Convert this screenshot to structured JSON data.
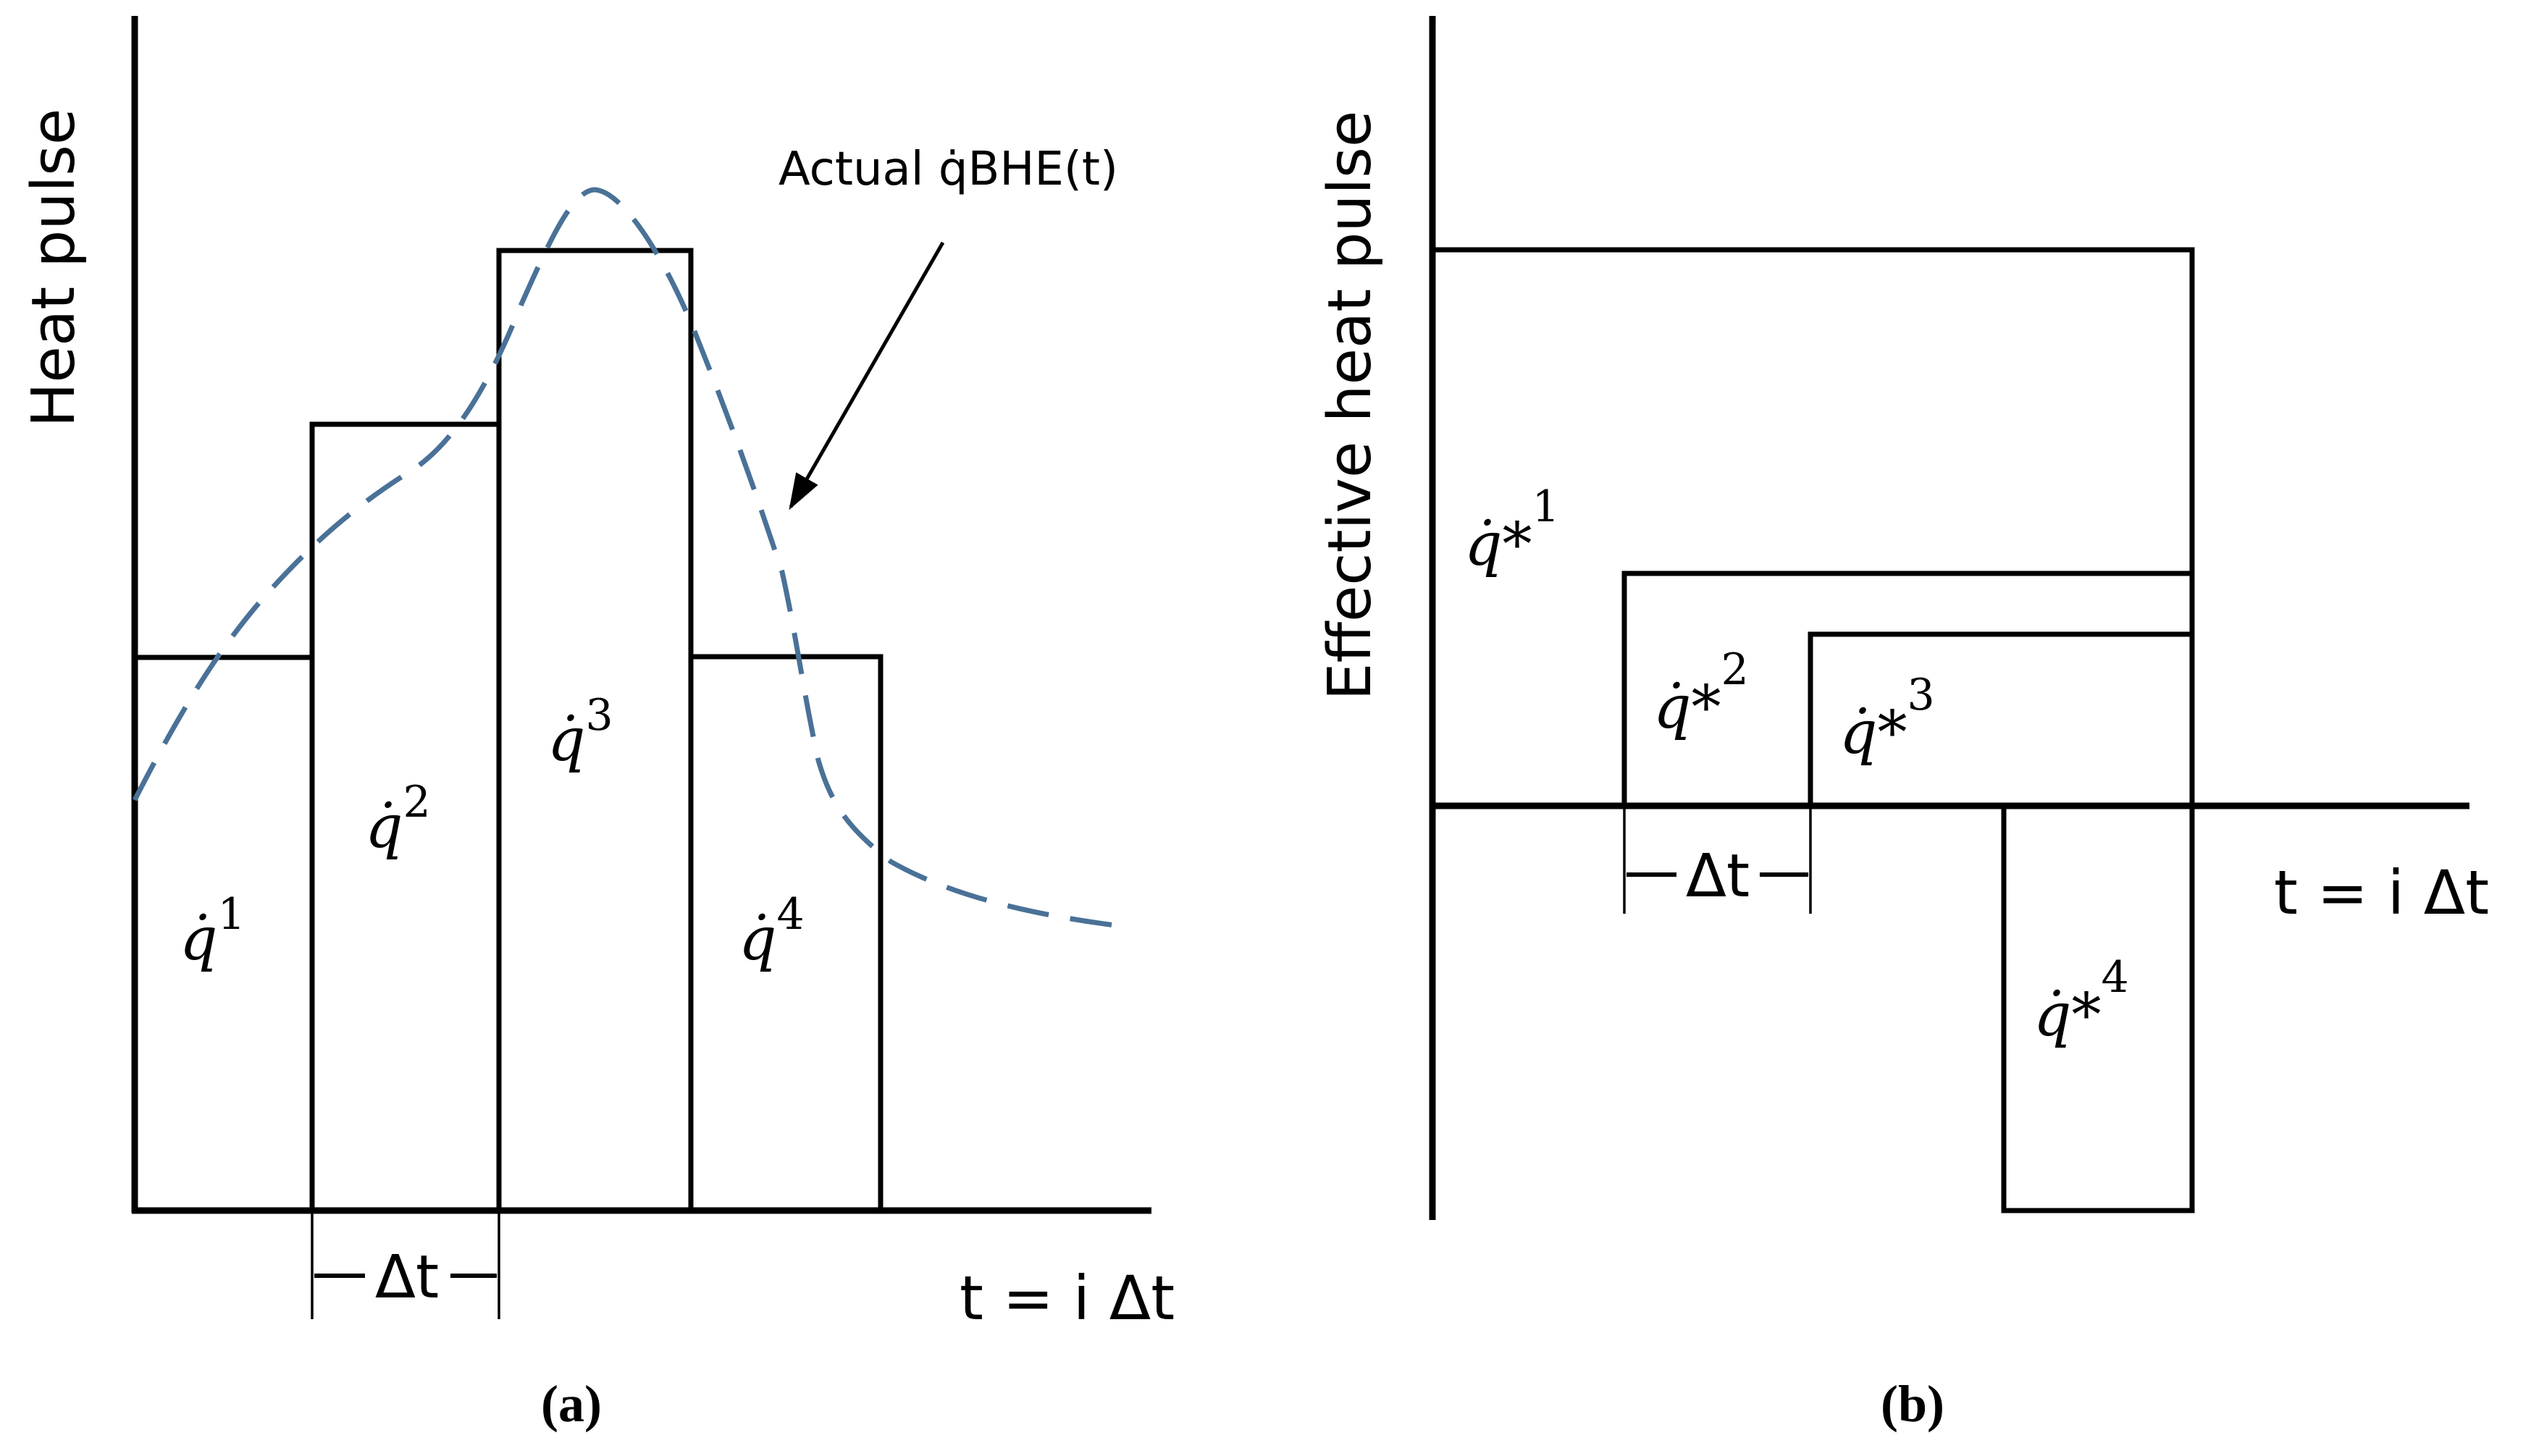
{
  "panel_a": {
    "ylabel": "Heat pulse",
    "xlabel": "t = i Δt",
    "delta": "Δt",
    "annotation": "Actual q̇BHE(t)",
    "blocks": [
      {
        "label": "q̇",
        "exp": "1"
      },
      {
        "label": "q̇",
        "exp": "2"
      },
      {
        "label": "q̇",
        "exp": "3"
      },
      {
        "label": "q̇",
        "exp": "4"
      }
    ],
    "caption": "(a)"
  },
  "panel_b": {
    "ylabel": "Effective heat pulse",
    "xlabel": "t = i Δt",
    "delta": "Δt",
    "blocks": [
      {
        "label": "q̇*",
        "exp": "1"
      },
      {
        "label": "q̇*",
        "exp": "2"
      },
      {
        "label": "q̇*",
        "exp": "3"
      },
      {
        "label": "q̇*",
        "exp": "4"
      }
    ],
    "caption": "(b)"
  }
}
